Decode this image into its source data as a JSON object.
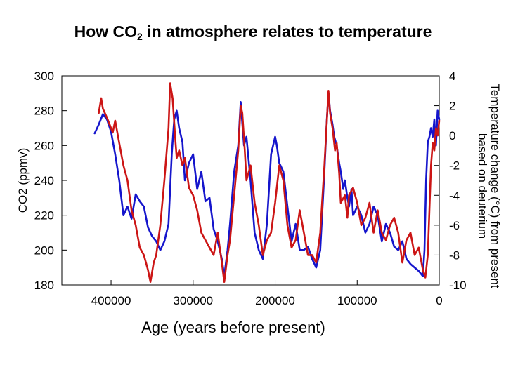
{
  "slide": {
    "title_before": "How CO",
    "title_sub": "2",
    "title_after": " in atmosphere relates to temperature"
  },
  "chart_data": {
    "type": "line",
    "title": "How CO2 in atmosphere relates to temperature",
    "xlabel": "Age (years before present)",
    "ylabel_left": "CO2 (ppmv)",
    "ylabel_right_line1": "Temperature change (°C) from present",
    "ylabel_right_line2": "based on deuterium",
    "x_reversed": true,
    "xlim": [
      460000,
      0
    ],
    "ylim_left": [
      180,
      300
    ],
    "ylim_right": [
      -10,
      4
    ],
    "x_ticks": [
      "400000",
      "300000",
      "200000",
      "100000",
      "0"
    ],
    "x_tick_values": [
      400000,
      300000,
      200000,
      100000,
      0
    ],
    "y_left_ticks": [
      "180",
      "200",
      "220",
      "240",
      "260",
      "280",
      "300"
    ],
    "y_left_tick_values": [
      180,
      200,
      220,
      240,
      260,
      280,
      300
    ],
    "y_right_ticks": [
      "-10",
      "-8",
      "-6",
      "-4",
      "-2",
      "0",
      "2",
      "4"
    ],
    "y_right_tick_values": [
      -10,
      -8,
      -6,
      -4,
      -2,
      0,
      2,
      4
    ],
    "grid": false,
    "series": [
      {
        "axis": "left",
        "color": "#1515cc",
        "x": [
          420000,
          415000,
          410000,
          405000,
          400000,
          395000,
          390000,
          385000,
          380000,
          375000,
          370000,
          365000,
          360000,
          355000,
          350000,
          345000,
          340000,
          335000,
          330000,
          326000,
          323000,
          320000,
          317000,
          313000,
          310000,
          305000,
          300000,
          295000,
          290000,
          285000,
          280000,
          275000,
          270000,
          265000,
          262000,
          258000,
          255000,
          250000,
          245000,
          242000,
          238000,
          235000,
          230000,
          225000,
          220000,
          215000,
          210000,
          205000,
          200000,
          198000,
          195000,
          190000,
          185000,
          180000,
          175000,
          170000,
          165000,
          160000,
          155000,
          150000,
          145000,
          140000,
          137000,
          135000,
          133000,
          130000,
          128000,
          125000,
          122000,
          120000,
          117000,
          115000,
          112000,
          110000,
          107000,
          105000,
          100000,
          95000,
          90000,
          85000,
          80000,
          75000,
          70000,
          65000,
          60000,
          55000,
          50000,
          45000,
          40000,
          35000,
          30000,
          25000,
          20000,
          18000,
          16000,
          14000,
          12000,
          10000,
          8000,
          6000,
          4000,
          2000,
          0
        ],
        "values": [
          267,
          272,
          278,
          275,
          268,
          255,
          240,
          220,
          225,
          218,
          232,
          228,
          225,
          213,
          208,
          205,
          200,
          205,
          215,
          255,
          275,
          280,
          270,
          262,
          240,
          250,
          255,
          235,
          245,
          228,
          230,
          212,
          205,
          195,
          185,
          200,
          215,
          245,
          260,
          285,
          260,
          265,
          240,
          210,
          200,
          195,
          215,
          255,
          265,
          260,
          250,
          245,
          225,
          205,
          215,
          200,
          200,
          202,
          195,
          190,
          200,
          245,
          275,
          290,
          280,
          272,
          265,
          260,
          250,
          245,
          235,
          240,
          230,
          225,
          235,
          220,
          225,
          220,
          210,
          215,
          225,
          220,
          205,
          215,
          210,
          202,
          200,
          205,
          195,
          192,
          190,
          188,
          185,
          200,
          240,
          262,
          265,
          270,
          265,
          275,
          260,
          280,
          275
        ]
      },
      {
        "axis": "right",
        "color": "#cc1515",
        "x": [
          415000,
          412000,
          410000,
          405000,
          400000,
          398000,
          395000,
          390000,
          385000,
          380000,
          375000,
          370000,
          365000,
          360000,
          355000,
          352000,
          348000,
          345000,
          340000,
          335000,
          330000,
          328000,
          325000,
          322000,
          320000,
          317000,
          313000,
          310000,
          305000,
          300000,
          295000,
          290000,
          285000,
          280000,
          275000,
          270000,
          265000,
          262000,
          258000,
          255000,
          250000,
          245000,
          242000,
          240000,
          237000,
          235000,
          230000,
          225000,
          220000,
          215000,
          210000,
          205000,
          200000,
          195000,
          190000,
          185000,
          180000,
          175000,
          170000,
          165000,
          160000,
          155000,
          150000,
          145000,
          140000,
          137000,
          135000,
          133000,
          130000,
          127000,
          125000,
          122000,
          120000,
          115000,
          112000,
          110000,
          105000,
          100000,
          95000,
          90000,
          85000,
          80000,
          75000,
          70000,
          65000,
          60000,
          55000,
          50000,
          45000,
          40000,
          35000,
          30000,
          25000,
          20000,
          17000,
          14000,
          12000,
          10000,
          8000,
          6000,
          4000,
          2000,
          0
        ],
        "values": [
          1.5,
          2.5,
          1.8,
          1.2,
          0.5,
          0.2,
          1.0,
          -0.5,
          -2.0,
          -3.0,
          -5.0,
          -6.0,
          -7.5,
          -8.0,
          -9.0,
          -9.8,
          -8.5,
          -8.0,
          -6.0,
          -3.0,
          0.5,
          3.5,
          2.5,
          0.0,
          -1.5,
          -1.0,
          -2.0,
          -1.5,
          -3.5,
          -4.0,
          -5.0,
          -6.5,
          -7.0,
          -7.5,
          -8.0,
          -6.5,
          -8.5,
          -9.8,
          -8.0,
          -7.0,
          -4.0,
          -1.0,
          2.0,
          1.5,
          -1.0,
          -3.0,
          -2.0,
          -4.5,
          -6.0,
          -8.0,
          -7.0,
          -6.5,
          -4.5,
          -2.0,
          -3.0,
          -6.0,
          -7.5,
          -7.0,
          -5.0,
          -6.5,
          -8.0,
          -8.0,
          -8.5,
          -6.5,
          -2.0,
          1.0,
          3.0,
          1.5,
          0.5,
          -1.0,
          -0.5,
          -2.5,
          -4.5,
          -4.0,
          -5.5,
          -4.0,
          -3.5,
          -4.5,
          -6.0,
          -5.5,
          -4.5,
          -6.5,
          -5.0,
          -6.5,
          -7.0,
          -6.0,
          -5.5,
          -6.5,
          -8.5,
          -7.0,
          -6.5,
          -8.0,
          -7.5,
          -9.0,
          -9.5,
          -8.0,
          -5.0,
          -2.0,
          -0.5,
          -1.0,
          0.5,
          0.0,
          1.0
        ]
      }
    ]
  }
}
